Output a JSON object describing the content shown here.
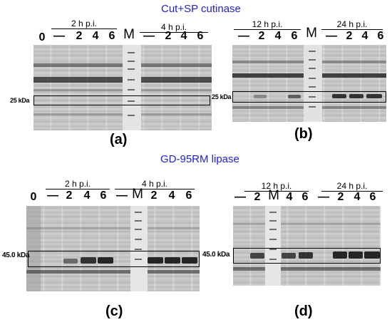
{
  "titles": {
    "top": "Cut+SP cutinase",
    "bottom": "GD-95RM lipase"
  },
  "panels": {
    "a": {
      "label": "(a)",
      "groups": [
        "2 h p.i.",
        "4 h p.i."
      ],
      "lanes": [
        "0",
        "—",
        "2",
        "4",
        "6",
        "M",
        "—",
        "2",
        "4",
        "6"
      ],
      "kda": "25 kDa"
    },
    "b": {
      "label": "(b)",
      "groups": [
        "12 h p.i.",
        "24 h p.i."
      ],
      "lanes": [
        "—",
        "2",
        "4",
        "6",
        "M",
        "—",
        "2",
        "4",
        "6"
      ],
      "kda": "25 kDa"
    },
    "c": {
      "label": "(c)",
      "groups": [
        "2 h p.i.",
        "4 h p.i."
      ],
      "lanes": [
        "0",
        "—",
        "2",
        "4",
        "6",
        "—",
        "M",
        "2",
        "4",
        "6"
      ],
      "kda": "45.0 kDa"
    },
    "d": {
      "label": "(d)",
      "groups": [
        "12 h p.i.",
        "24 h p.i."
      ],
      "lanes": [
        "—",
        "2",
        "M",
        "4",
        "6",
        "—",
        "2",
        "4",
        "6"
      ],
      "kda": "45.0 kDa"
    }
  }
}
